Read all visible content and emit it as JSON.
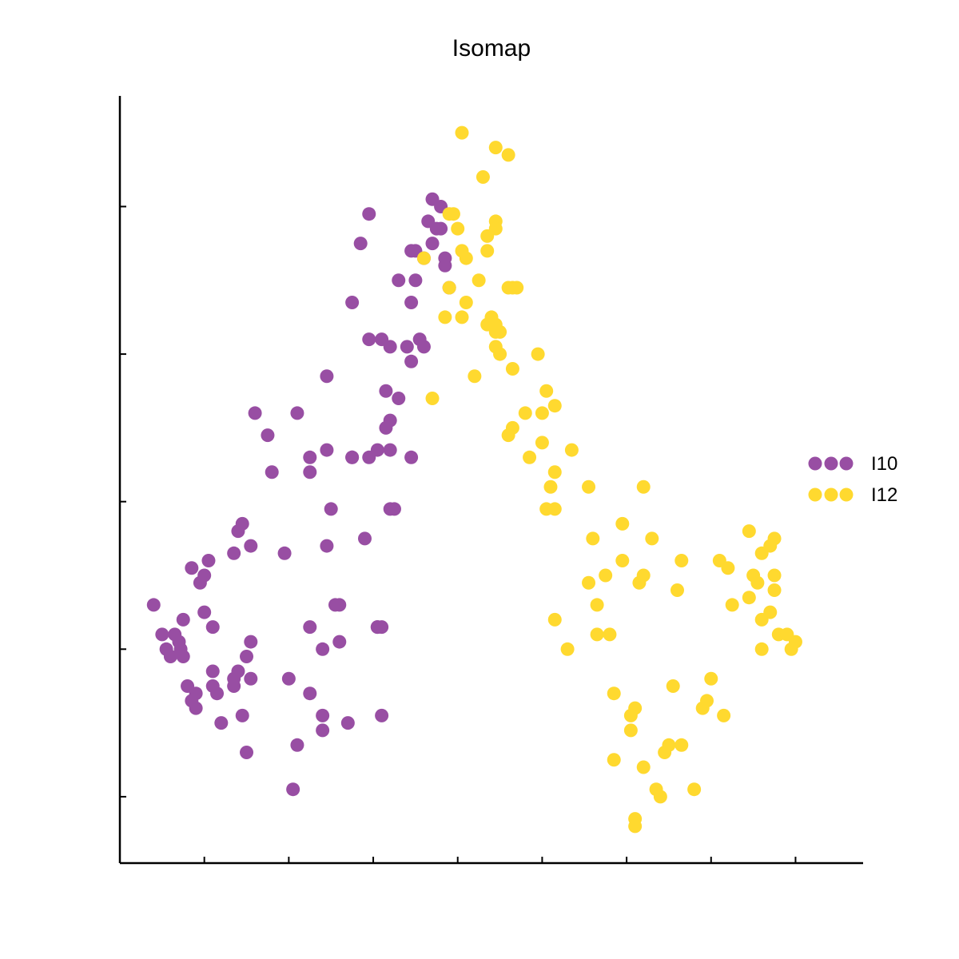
{
  "chart_data": {
    "type": "scatter",
    "title": "Isomap",
    "xlabel": "",
    "ylabel": "",
    "xlim": [
      0,
      8.8
    ],
    "ylim": [
      -0.45,
      4.75
    ],
    "xticks": [
      1,
      2,
      3,
      4,
      5,
      6,
      7,
      8
    ],
    "yticks": [
      0,
      1,
      2,
      3,
      4
    ],
    "tick_labels_visible": false,
    "grid": false,
    "legend_position": "right",
    "series": [
      {
        "name": "I10",
        "color": "#984ea3",
        "points": [
          [
            0.4,
            1.3
          ],
          [
            0.5,
            1.1
          ],
          [
            0.55,
            1.0
          ],
          [
            0.6,
            0.95
          ],
          [
            0.65,
            1.1
          ],
          [
            0.7,
            1.05
          ],
          [
            0.72,
            1.0
          ],
          [
            0.75,
            0.95
          ],
          [
            0.75,
            1.2
          ],
          [
            0.8,
            0.75
          ],
          [
            0.85,
            0.65
          ],
          [
            0.9,
            0.7
          ],
          [
            0.9,
            0.6
          ],
          [
            0.85,
            1.55
          ],
          [
            0.95,
            1.45
          ],
          [
            1.0,
            1.25
          ],
          [
            1.0,
            1.5
          ],
          [
            1.05,
            1.6
          ],
          [
            1.1,
            0.75
          ],
          [
            1.1,
            0.85
          ],
          [
            1.15,
            0.7
          ],
          [
            1.1,
            1.15
          ],
          [
            1.2,
            0.5
          ],
          [
            1.35,
            0.8
          ],
          [
            1.35,
            0.75
          ],
          [
            1.4,
            0.85
          ],
          [
            1.45,
            0.55
          ],
          [
            1.5,
            0.95
          ],
          [
            1.55,
            0.8
          ],
          [
            1.55,
            1.05
          ],
          [
            1.5,
            0.3
          ],
          [
            1.35,
            1.65
          ],
          [
            1.4,
            1.8
          ],
          [
            1.45,
            1.85
          ],
          [
            1.55,
            1.7
          ],
          [
            1.6,
            2.6
          ],
          [
            1.75,
            2.45
          ],
          [
            1.8,
            2.2
          ],
          [
            1.95,
            1.65
          ],
          [
            2.0,
            0.8
          ],
          [
            2.05,
            0.05
          ],
          [
            2.1,
            0.35
          ],
          [
            2.1,
            2.6
          ],
          [
            2.25,
            0.7
          ],
          [
            2.25,
            1.15
          ],
          [
            2.25,
            2.2
          ],
          [
            2.25,
            2.3
          ],
          [
            2.4,
            0.45
          ],
          [
            2.4,
            0.55
          ],
          [
            2.4,
            1.0
          ],
          [
            2.45,
            1.7
          ],
          [
            2.45,
            2.35
          ],
          [
            2.5,
            1.95
          ],
          [
            2.45,
            2.85
          ],
          [
            2.55,
            1.3
          ],
          [
            2.6,
            1.3
          ],
          [
            2.6,
            1.05
          ],
          [
            2.7,
            0.5
          ],
          [
            2.75,
            2.3
          ],
          [
            2.75,
            2.3
          ],
          [
            2.75,
            3.35
          ],
          [
            2.85,
            3.75
          ],
          [
            2.9,
            1.75
          ],
          [
            2.95,
            2.3
          ],
          [
            2.95,
            3.1
          ],
          [
            2.95,
            3.95
          ],
          [
            3.05,
            2.35
          ],
          [
            3.05,
            1.15
          ],
          [
            3.05,
            1.15
          ],
          [
            3.1,
            0.55
          ],
          [
            3.1,
            1.15
          ],
          [
            3.1,
            3.1
          ],
          [
            3.15,
            2.5
          ],
          [
            3.15,
            2.75
          ],
          [
            3.2,
            2.55
          ],
          [
            3.2,
            3.05
          ],
          [
            3.2,
            1.95
          ],
          [
            3.25,
            1.95
          ],
          [
            3.2,
            2.35
          ],
          [
            3.3,
            2.7
          ],
          [
            3.3,
            3.5
          ],
          [
            3.45,
            2.3
          ],
          [
            3.45,
            2.95
          ],
          [
            3.5,
            3.5
          ],
          [
            3.45,
            3.7
          ],
          [
            3.5,
            3.7
          ],
          [
            3.4,
            3.05
          ],
          [
            3.45,
            3.35
          ],
          [
            3.55,
            3.1
          ],
          [
            3.6,
            3.65
          ],
          [
            3.6,
            3.05
          ],
          [
            3.65,
            3.9
          ],
          [
            3.7,
            3.75
          ],
          [
            3.7,
            4.05
          ],
          [
            3.75,
            3.85
          ],
          [
            3.8,
            3.85
          ],
          [
            3.85,
            3.65
          ],
          [
            3.85,
            3.6
          ],
          [
            3.8,
            4.0
          ],
          [
            3.9,
            3.45
          ]
        ]
      },
      {
        "name": "I12",
        "color": "#ffd92f",
        "points": [
          [
            4.05,
            4.5
          ],
          [
            4.45,
            4.4
          ],
          [
            4.6,
            4.35
          ],
          [
            4.3,
            4.2
          ],
          [
            3.9,
            3.95
          ],
          [
            3.95,
            3.95
          ],
          [
            4.0,
            3.85
          ],
          [
            4.05,
            3.7
          ],
          [
            4.1,
            3.65
          ],
          [
            3.6,
            3.65
          ],
          [
            4.25,
            3.5
          ],
          [
            4.35,
            3.8
          ],
          [
            4.45,
            3.9
          ],
          [
            4.35,
            3.7
          ],
          [
            4.45,
            3.85
          ],
          [
            4.6,
            3.45
          ],
          [
            4.65,
            3.45
          ],
          [
            4.7,
            3.45
          ],
          [
            3.9,
            3.45
          ],
          [
            4.1,
            3.35
          ],
          [
            3.85,
            3.25
          ],
          [
            4.05,
            3.25
          ],
          [
            4.4,
            3.25
          ],
          [
            4.45,
            3.15
          ],
          [
            4.5,
            3.15
          ],
          [
            4.35,
            3.2
          ],
          [
            4.45,
            3.05
          ],
          [
            4.5,
            3.0
          ],
          [
            4.45,
            3.2
          ],
          [
            4.65,
            2.9
          ],
          [
            4.95,
            3.0
          ],
          [
            4.2,
            2.85
          ],
          [
            3.7,
            2.7
          ],
          [
            4.8,
            2.6
          ],
          [
            5.05,
            2.75
          ],
          [
            4.65,
            2.5
          ],
          [
            4.6,
            2.45
          ],
          [
            5.0,
            2.6
          ],
          [
            5.15,
            2.65
          ],
          [
            5.0,
            2.4
          ],
          [
            4.85,
            2.3
          ],
          [
            5.15,
            2.2
          ],
          [
            5.35,
            2.35
          ],
          [
            5.1,
            2.1
          ],
          [
            5.05,
            1.95
          ],
          [
            5.15,
            1.95
          ],
          [
            5.55,
            2.1
          ],
          [
            6.2,
            2.1
          ],
          [
            5.6,
            1.75
          ],
          [
            5.95,
            1.85
          ],
          [
            6.3,
            1.75
          ],
          [
            5.75,
            1.5
          ],
          [
            5.95,
            1.6
          ],
          [
            5.55,
            1.45
          ],
          [
            5.65,
            1.3
          ],
          [
            6.15,
            1.45
          ],
          [
            6.6,
            1.4
          ],
          [
            6.2,
            1.5
          ],
          [
            6.65,
            1.6
          ],
          [
            7.1,
            1.6
          ],
          [
            7.2,
            1.55
          ],
          [
            7.6,
            1.65
          ],
          [
            7.45,
            1.8
          ],
          [
            7.7,
            1.7
          ],
          [
            7.75,
            1.75
          ],
          [
            7.25,
            1.3
          ],
          [
            7.45,
            1.35
          ],
          [
            7.5,
            1.5
          ],
          [
            7.55,
            1.45
          ],
          [
            7.75,
            1.5
          ],
          [
            7.7,
            1.25
          ],
          [
            7.75,
            1.4
          ],
          [
            5.15,
            1.2
          ],
          [
            5.3,
            1.0
          ],
          [
            5.65,
            1.1
          ],
          [
            5.8,
            1.1
          ],
          [
            7.6,
            1.2
          ],
          [
            7.6,
            1.0
          ],
          [
            7.8,
            1.1
          ],
          [
            7.9,
            1.1
          ],
          [
            7.95,
            1.0
          ],
          [
            8.0,
            1.05
          ],
          [
            7.15,
            0.55
          ],
          [
            5.85,
            0.7
          ],
          [
            6.1,
            0.6
          ],
          [
            6.55,
            0.75
          ],
          [
            6.9,
            0.6
          ],
          [
            6.95,
            0.65
          ],
          [
            7.0,
            0.8
          ],
          [
            6.05,
            0.55
          ],
          [
            6.05,
            0.45
          ],
          [
            6.5,
            0.35
          ],
          [
            6.65,
            0.35
          ],
          [
            6.45,
            0.3
          ],
          [
            5.85,
            0.25
          ],
          [
            6.2,
            0.2
          ],
          [
            6.35,
            0.05
          ],
          [
            6.4,
            0.0
          ],
          [
            6.8,
            0.05
          ],
          [
            6.1,
            -0.15
          ],
          [
            6.1,
            -0.2
          ]
        ]
      }
    ]
  }
}
